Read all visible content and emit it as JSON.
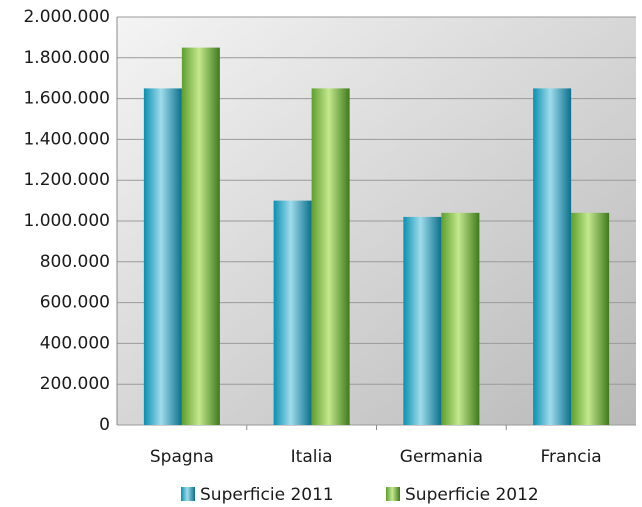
{
  "chart_data": {
    "type": "bar",
    "categories": [
      "Spagna",
      "Italia",
      "Germania",
      "Francia"
    ],
    "series": [
      {
        "name": "Superficie 2011",
        "color": "#0a8fb0",
        "values": [
          1650000,
          1100000,
          1020000,
          1650000
        ]
      },
      {
        "name": "Superficie 2012",
        "color": "#5e9e2e",
        "values": [
          1850000,
          1650000,
          1040000,
          1040000
        ]
      }
    ],
    "ylim": [
      0,
      2000000
    ],
    "yticks": [
      0,
      {
        "value": 200000,
        "label": "200.000"
      },
      {
        "value": 400000,
        "label": "400.000"
      },
      {
        "value": 600000,
        "label": "600.000"
      },
      {
        "value": 800000,
        "label": "800.000"
      },
      {
        "value": 1000000,
        "label": "1.000.000"
      },
      {
        "value": 1200000,
        "label": "1.200.000"
      },
      {
        "value": 1400000,
        "label": "1.400.000"
      },
      {
        "value": 1600000,
        "label": "1.600.000"
      },
      {
        "value": 1800000,
        "label": "1.800.000"
      },
      {
        "value": 2000000,
        "label": "2.000.000"
      }
    ],
    "grid": true,
    "legend": "bottom"
  }
}
